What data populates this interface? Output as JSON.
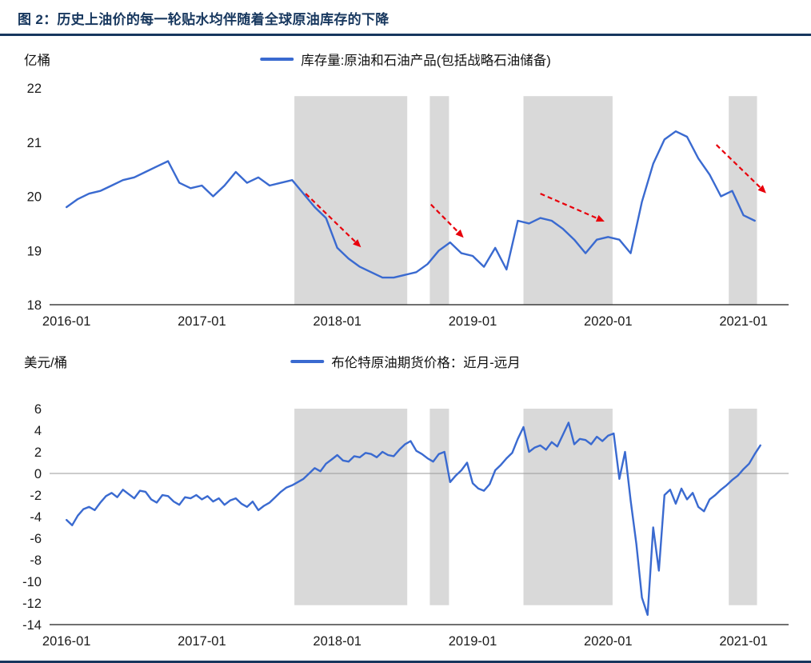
{
  "page": {
    "title": "图 2：历史上油价的每一轮贴水均伴随着全球原油库存的下降"
  },
  "colors": {
    "navy": "#17375e",
    "line_blue": "#3a6ad0",
    "band_gray": "#d9d9d9",
    "arrow_red": "#e8000b",
    "zero_gray": "#999999",
    "axis_black": "#1a1a1a"
  },
  "chart_data": [
    {
      "type": "line",
      "name": "global-crude-oil-inventory",
      "unit_label": "亿桶",
      "legend": "库存量:原油和石油产品(包括战略石油储备)",
      "ylim": [
        18,
        22
      ],
      "y_ticks": [
        22,
        21,
        20,
        19,
        18
      ],
      "xlim": [
        -1.5,
        64
      ],
      "x_note": "x = months since 2016-01",
      "x_tick_positions": [
        0,
        12,
        24,
        36,
        48,
        60
      ],
      "x_tick_labels": [
        "2016-01",
        "2017-01",
        "2018-01",
        "2019-01",
        "2020-01",
        "2021-01"
      ],
      "grid": false,
      "legend_position": "top-center",
      "bands_x": [
        [
          20.2,
          30.2
        ],
        [
          32.2,
          33.9
        ],
        [
          40.5,
          48.4
        ],
        [
          58.7,
          61.2
        ]
      ],
      "band_y": [
        18,
        21.85
      ],
      "series": {
        "x0": 0,
        "x_step": 1,
        "values": [
          19.8,
          19.95,
          20.05,
          20.1,
          20.2,
          20.3,
          20.35,
          20.45,
          20.55,
          20.65,
          20.25,
          20.15,
          20.2,
          20.0,
          20.2,
          20.45,
          20.25,
          20.35,
          20.2,
          20.25,
          20.3,
          20.05,
          19.8,
          19.6,
          19.05,
          18.85,
          18.7,
          18.6,
          18.5,
          18.5,
          18.55,
          18.6,
          18.75,
          19.0,
          19.15,
          18.95,
          18.9,
          18.7,
          19.05,
          18.65,
          19.55,
          19.5,
          19.6,
          19.55,
          19.4,
          19.2,
          18.95,
          19.2,
          19.25,
          19.2,
          18.95,
          19.9,
          20.6,
          21.05,
          21.2,
          21.1,
          20.7,
          20.4,
          20.0,
          20.1,
          19.65,
          19.55
        ]
      },
      "arrows": [
        {
          "x1": 21.2,
          "y1": 20.05,
          "x2": 25.8,
          "y2": 19.12
        },
        {
          "x1": 32.3,
          "y1": 19.85,
          "x2": 34.9,
          "y2": 19.3
        },
        {
          "x1": 42.0,
          "y1": 20.05,
          "x2": 47.3,
          "y2": 19.57
        },
        {
          "x1": 57.6,
          "y1": 20.95,
          "x2": 61.7,
          "y2": 20.12
        }
      ]
    },
    {
      "type": "line",
      "name": "brent-near-minus-far-month-spread",
      "unit_label": "美元/桶",
      "legend": "布伦特原油期货价格：近月-远月",
      "ylim": [
        -14,
        6
      ],
      "y_ticks": [
        6,
        4,
        2,
        0,
        -2,
        -4,
        -6,
        -8,
        -10,
        -12,
        -14
      ],
      "xlim": [
        -1.5,
        64
      ],
      "x_note": "x = months since 2016-01",
      "x_tick_positions": [
        0,
        12,
        24,
        36,
        48,
        60
      ],
      "x_tick_labels": [
        "2016-01",
        "2017-01",
        "2018-01",
        "2019-01",
        "2020-01",
        "2021-01"
      ],
      "grid": false,
      "zero_line": true,
      "legend_position": "top-center",
      "bands_x": [
        [
          20.2,
          30.2
        ],
        [
          32.2,
          33.9
        ],
        [
          40.5,
          48.4
        ],
        [
          58.7,
          61.2
        ]
      ],
      "band_y": [
        -12.2,
        6
      ],
      "series": {
        "x0": 0,
        "x_step": 0.5,
        "values": [
          -4.3,
          -4.8,
          -3.9,
          -3.3,
          -3.1,
          -3.4,
          -2.7,
          -2.1,
          -1.8,
          -2.2,
          -1.5,
          -1.9,
          -2.3,
          -1.6,
          -1.7,
          -2.4,
          -2.7,
          -2.0,
          -2.1,
          -2.6,
          -2.9,
          -2.2,
          -2.3,
          -2.0,
          -2.4,
          -2.1,
          -2.6,
          -2.3,
          -2.9,
          -2.5,
          -2.3,
          -2.8,
          -3.1,
          -2.6,
          -3.4,
          -3.0,
          -2.7,
          -2.2,
          -1.7,
          -1.3,
          -1.1,
          -0.8,
          -0.5,
          0.0,
          0.5,
          0.2,
          0.9,
          1.3,
          1.7,
          1.2,
          1.1,
          1.6,
          1.5,
          1.9,
          1.8,
          1.5,
          2.0,
          1.7,
          1.6,
          2.2,
          2.7,
          3.0,
          2.1,
          1.8,
          1.4,
          1.1,
          1.8,
          2.0,
          -0.8,
          -0.2,
          0.3,
          1.0,
          -0.9,
          -1.4,
          -1.6,
          -1.0,
          0.3,
          0.8,
          1.4,
          1.9,
          3.2,
          4.3,
          2.0,
          2.4,
          2.6,
          2.2,
          2.9,
          2.5,
          3.6,
          4.7,
          2.7,
          3.2,
          3.1,
          2.7,
          3.4,
          3.0,
          3.5,
          3.7,
          -0.5,
          2.0,
          -2.5,
          -6.5,
          -11.5,
          -13.1,
          -5.0,
          -9.0,
          -2.0,
          -1.5,
          -2.8,
          -1.4,
          -2.4,
          -1.8,
          -3.1,
          -3.5,
          -2.4,
          -2.0,
          -1.5,
          -1.1,
          -0.6,
          -0.2,
          0.4,
          0.9,
          1.8,
          2.6
        ]
      },
      "arrows": []
    }
  ]
}
